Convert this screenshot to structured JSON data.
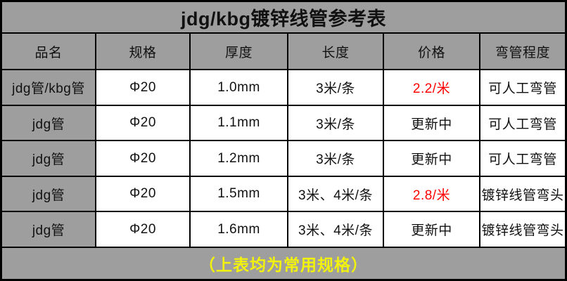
{
  "title": "jdg/kbg镀锌线管参考表",
  "table": {
    "headers": [
      "品名",
      "规格",
      "厚度",
      "长度",
      "价格",
      "弯管程度"
    ],
    "rows": [
      {
        "name": "jdg管/kbg管",
        "spec": "Φ20",
        "thickness": "1.0mm",
        "length": "3米/条",
        "price": "2.2/米",
        "price_highlight": true,
        "bend": "可人工弯管"
      },
      {
        "name": "jdg管",
        "spec": "Φ20",
        "thickness": "1.1mm",
        "length": "3米/条",
        "price": "更新中",
        "price_highlight": false,
        "bend": "可人工弯管"
      },
      {
        "name": "jdg管",
        "spec": "Φ20",
        "thickness": "1.2mm",
        "length": "3米/条",
        "price": "更新中",
        "price_highlight": false,
        "bend": "可人工弯管"
      },
      {
        "name": "jdg管",
        "spec": "Φ20",
        "thickness": "1.5mm",
        "length": "3米、4米/条",
        "price": "2.8/米",
        "price_highlight": true,
        "bend": "镀锌线管弯头"
      },
      {
        "name": "jdg管",
        "spec": "Φ20",
        "thickness": "1.6mm",
        "length": "3米、4米/条",
        "price": "更新中",
        "price_highlight": false,
        "bend": "镀锌线管弯头"
      }
    ]
  },
  "footer": {
    "note": "（上表均为常用规格）"
  },
  "colors": {
    "background_gray": "#9e9e9e",
    "cell_white": "#ffffff",
    "border_black": "#000000",
    "price_highlight_red": "#ff0000",
    "footer_note_yellow": "#f2f20d",
    "text_black": "#111111"
  }
}
